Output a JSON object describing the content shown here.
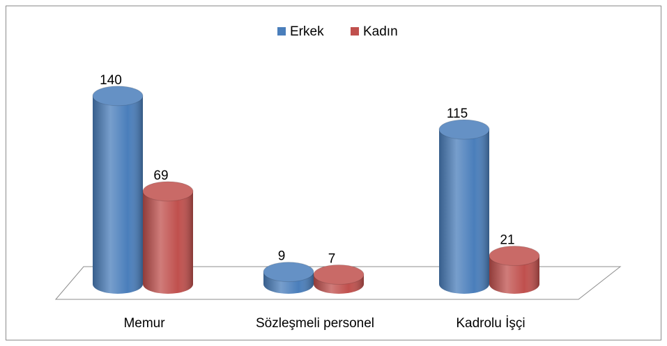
{
  "chart_data": {
    "type": "bar3d_cylinder",
    "categories": [
      "Memur",
      "Sözleşmeli personel",
      "Kadrolu İşçi"
    ],
    "series": [
      {
        "name": "Erkek",
        "color": "#4a7ebb",
        "values": [
          140,
          9,
          115
        ]
      },
      {
        "name": "Kadın",
        "color": "#c0504d",
        "values": [
          69,
          7,
          21
        ]
      }
    ],
    "legend": "top"
  }
}
